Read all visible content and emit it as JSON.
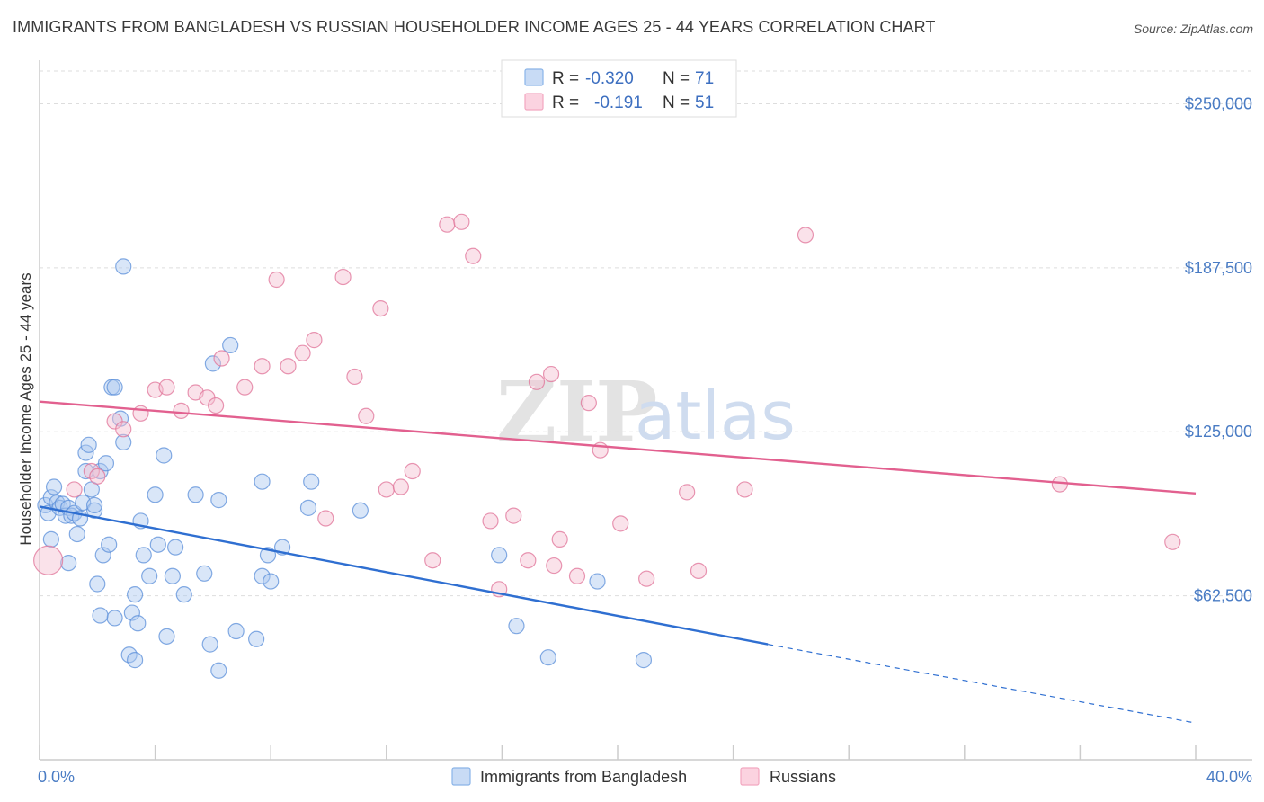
{
  "title": "IMMIGRANTS FROM BANGLADESH VS RUSSIAN HOUSEHOLDER INCOME AGES 25 - 44 YEARS CORRELATION CHART",
  "source": "Source: ZipAtlas.com",
  "watermark": {
    "zip": "ZIP",
    "atlas": "atlas"
  },
  "legend": {
    "rows": [
      {
        "r_label": "R = ",
        "r_value": "-0.320",
        "n_label": "N = ",
        "n_value": "71",
        "color": "#8ab4e8"
      },
      {
        "r_label": "R = ",
        "r_value": "-0.191",
        "n_label": "N = ",
        "n_value": "51",
        "color": "#f2a7c0"
      }
    ]
  },
  "bottom_legend": [
    "Immigrants from Bangladesh",
    "Russians"
  ],
  "chart_data": {
    "type": "scatter",
    "title": "IMMIGRANTS FROM BANGLADESH VS RUSSIAN HOUSEHOLDER INCOME AGES 25 - 44 YEARS CORRELATION CHART",
    "xlabel": "",
    "ylabel": "Householder Income Ages 25 - 44 years",
    "xlim": [
      0,
      40
    ],
    "ylim": [
      0,
      262500
    ],
    "x_tick_labels": [
      "0.0%",
      "40.0%"
    ],
    "y_ticks": [
      62500,
      125000,
      187500,
      250000
    ],
    "y_tick_labels": [
      "$62,500",
      "$125,000",
      "$187,500",
      "$250,000"
    ],
    "grid": "horizontal dashed",
    "legend_position": "top-center",
    "series": [
      {
        "name": "Immigrants from Bangladesh",
        "color": "#5b8fd9",
        "fill": "#aac8ef",
        "trend": {
          "x0": 0,
          "y0": 96500,
          "x1": 25.2,
          "y1": 44000,
          "dashed_to_x": 40,
          "dashed_to_y": 14000
        },
        "points": [
          [
            0.2,
            97000
          ],
          [
            0.3,
            94000
          ],
          [
            0.4,
            100000
          ],
          [
            0.5,
            104000
          ],
          [
            0.6,
            98000
          ],
          [
            0.7,
            96000
          ],
          [
            0.8,
            97500
          ],
          [
            0.9,
            93000
          ],
          [
            1.0,
            96000
          ],
          [
            1.0,
            75000
          ],
          [
            1.1,
            93000
          ],
          [
            1.2,
            94000
          ],
          [
            1.4,
            92000
          ],
          [
            1.5,
            98000
          ],
          [
            1.6,
            110000
          ],
          [
            1.6,
            117000
          ],
          [
            1.7,
            120000
          ],
          [
            1.8,
            103000
          ],
          [
            1.9,
            95000
          ],
          [
            1.9,
            97000
          ],
          [
            2.0,
            67000
          ],
          [
            2.1,
            110000
          ],
          [
            2.2,
            78000
          ],
          [
            2.3,
            113000
          ],
          [
            2.4,
            82000
          ],
          [
            2.5,
            142000
          ],
          [
            2.6,
            142000
          ],
          [
            2.6,
            54000
          ],
          [
            2.8,
            130000
          ],
          [
            2.9,
            121000
          ],
          [
            2.9,
            188000
          ],
          [
            3.1,
            40000
          ],
          [
            3.2,
            56000
          ],
          [
            3.3,
            63000
          ],
          [
            3.4,
            52000
          ],
          [
            3.5,
            91000
          ],
          [
            3.6,
            78000
          ],
          [
            3.8,
            70000
          ],
          [
            4.0,
            101000
          ],
          [
            4.1,
            82000
          ],
          [
            4.3,
            116000
          ],
          [
            4.4,
            47000
          ],
          [
            4.6,
            70000
          ],
          [
            4.7,
            81000
          ],
          [
            5.0,
            63000
          ],
          [
            5.4,
            101000
          ],
          [
            5.7,
            71000
          ],
          [
            5.9,
            44000
          ],
          [
            6.0,
            151000
          ],
          [
            6.2,
            99000
          ],
          [
            6.2,
            34000
          ],
          [
            6.8,
            49000
          ],
          [
            6.6,
            158000
          ],
          [
            7.5,
            46000
          ],
          [
            7.7,
            106000
          ],
          [
            7.7,
            70000
          ],
          [
            7.9,
            78000
          ],
          [
            8.0,
            68000
          ],
          [
            8.4,
            81000
          ],
          [
            9.3,
            96000
          ],
          [
            9.4,
            106000
          ],
          [
            11.1,
            95000
          ],
          [
            2.1,
            55000
          ],
          [
            3.3,
            38000
          ],
          [
            15.9,
            78000
          ],
          [
            16.5,
            51000
          ],
          [
            17.6,
            39000
          ],
          [
            19.3,
            68000
          ],
          [
            20.9,
            38000
          ],
          [
            0.4,
            84000
          ],
          [
            1.3,
            86000
          ]
        ]
      },
      {
        "name": "Russians",
        "color": "#e07398",
        "fill": "#f5bfd1",
        "trend": {
          "x0": 0,
          "y0": 136500,
          "x1": 40,
          "y1": 101500
        },
        "points": [
          [
            0.3,
            76000
          ],
          [
            1.2,
            103000
          ],
          [
            1.8,
            110000
          ],
          [
            2.0,
            108000
          ],
          [
            2.6,
            129000
          ],
          [
            2.9,
            126000
          ],
          [
            3.5,
            132000
          ],
          [
            4.0,
            141000
          ],
          [
            4.4,
            142000
          ],
          [
            4.9,
            133000
          ],
          [
            5.4,
            140000
          ],
          [
            5.8,
            138000
          ],
          [
            6.1,
            135000
          ],
          [
            6.3,
            153000
          ],
          [
            7.1,
            142000
          ],
          [
            7.7,
            150000
          ],
          [
            8.2,
            183000
          ],
          [
            8.6,
            150000
          ],
          [
            9.1,
            155000
          ],
          [
            9.5,
            160000
          ],
          [
            9.9,
            92000
          ],
          [
            10.5,
            184000
          ],
          [
            10.9,
            146000
          ],
          [
            11.3,
            131000
          ],
          [
            11.8,
            172000
          ],
          [
            12.0,
            103000
          ],
          [
            12.5,
            104000
          ],
          [
            12.9,
            110000
          ],
          [
            13.6,
            76000
          ],
          [
            14.1,
            204000
          ],
          [
            14.6,
            205000
          ],
          [
            15.0,
            192000
          ],
          [
            15.6,
            91000
          ],
          [
            15.9,
            65000
          ],
          [
            16.4,
            93000
          ],
          [
            16.9,
            76000
          ],
          [
            17.2,
            144000
          ],
          [
            17.7,
            147000
          ],
          [
            17.8,
            74000
          ],
          [
            18.0,
            84000
          ],
          [
            18.6,
            70000
          ],
          [
            19.0,
            136000
          ],
          [
            19.4,
            118000
          ],
          [
            20.1,
            90000
          ],
          [
            21.0,
            69000
          ],
          [
            22.4,
            102000
          ],
          [
            22.8,
            72000
          ],
          [
            24.4,
            103000
          ],
          [
            26.5,
            200000
          ],
          [
            35.3,
            105000
          ],
          [
            39.2,
            83000
          ]
        ]
      }
    ]
  }
}
